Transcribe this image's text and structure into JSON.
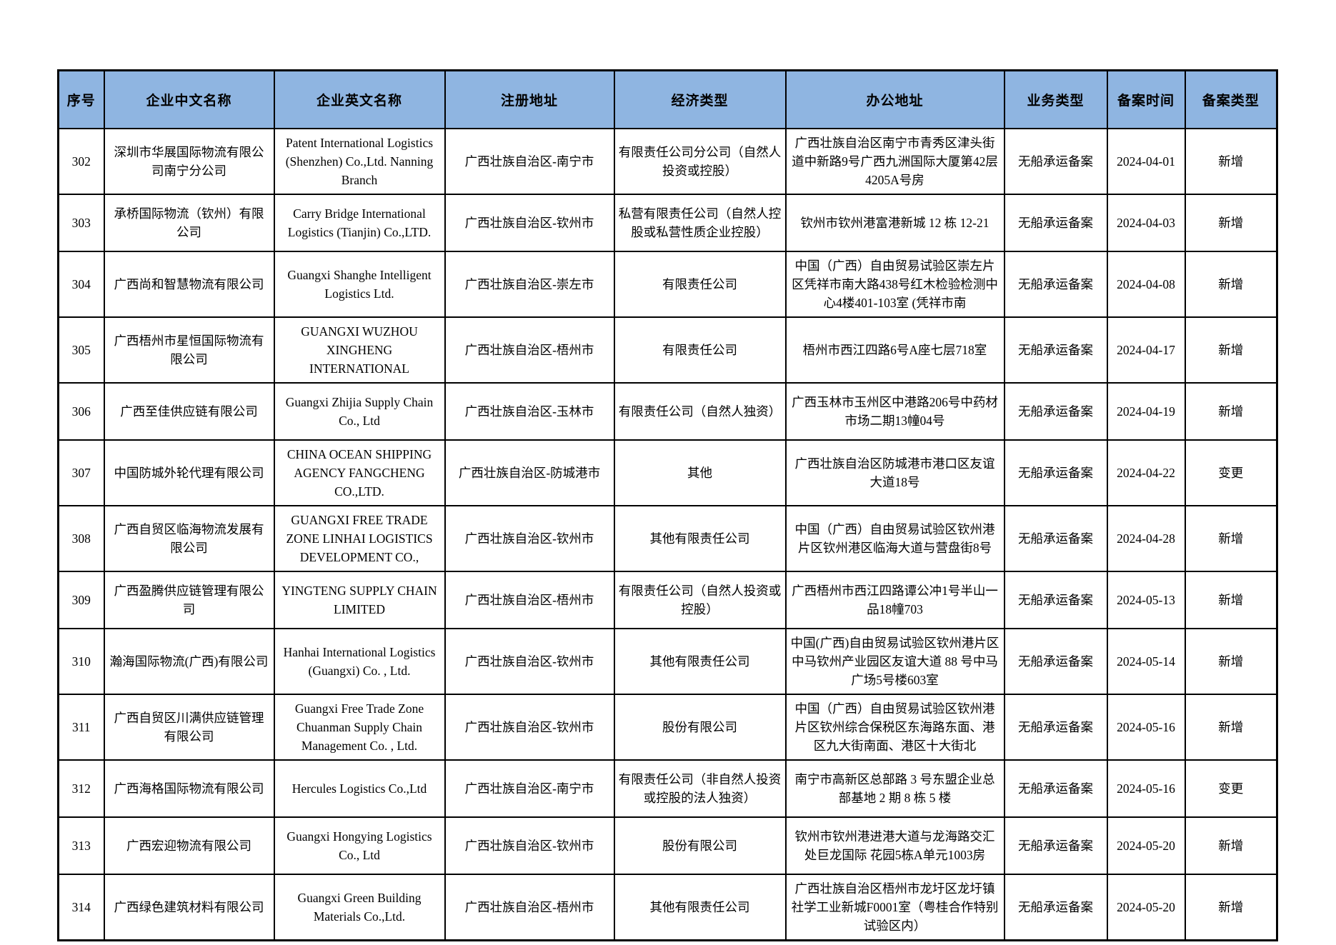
{
  "colors": {
    "header_bg": "#8FB5E1",
    "border": "#000000",
    "page_bg": "#FFFFFF"
  },
  "table": {
    "headers": [
      "序号",
      "企业中文名称",
      "企业英文名称",
      "注册地址",
      "经济类型",
      "办公地址",
      "业务类型",
      "备案时间",
      "备案类型"
    ],
    "rows": [
      [
        "302",
        "深圳市华展国际物流有限公司南宁分公司",
        "Patent International Logistics (Shenzhen) Co.,Ltd. Nanning Branch",
        "广西壮族自治区-南宁市",
        "有限责任公司分公司（自然人投资或控股）",
        "广西壮族自治区南宁市青秀区津头街道中新路9号广西九洲国际大厦第42层4205A号房",
        "无船承运备案",
        "2024-04-01",
        "新增"
      ],
      [
        "303",
        "承桥国际物流（钦州）有限公司",
        "Carry Bridge International Logistics (Tianjin) Co.,LTD.",
        "广西壮族自治区-钦州市",
        "私营有限责任公司（自然人控股或私营性质企业控股）",
        "钦州市钦州港富港新城 12 栋 12-21",
        "无船承运备案",
        "2024-04-03",
        "新增"
      ],
      [
        "304",
        "广西尚和智慧物流有限公司",
        "Guangxi Shanghe Intelligent Logistics Ltd.",
        "广西壮族自治区-崇左市",
        "有限责任公司",
        "中国（广西）自由贸易试验区崇左片区凭祥市南大路438号红木检验检测中心4楼401-103室 (凭祥市南",
        "无船承运备案",
        "2024-04-08",
        "新增"
      ],
      [
        "305",
        "广西梧州市星恒国际物流有限公司",
        "GUANGXI WUZHOU XINGHENG INTERNATIONAL",
        "广西壮族自治区-梧州市",
        "有限责任公司",
        "梧州市西江四路6号A座七层718室",
        "无船承运备案",
        "2024-04-17",
        "新增"
      ],
      [
        "306",
        "广西至佳供应链有限公司",
        "Guangxi Zhijia Supply Chain Co., Ltd",
        "广西壮族自治区-玉林市",
        "有限责任公司（自然人独资）",
        "广西玉林市玉州区中港路206号中药材市场二期13幢04号",
        "无船承运备案",
        "2024-04-19",
        "新增"
      ],
      [
        "307",
        "中国防城外轮代理有限公司",
        "CHINA OCEAN SHIPPING AGENCY FANGCHENG CO.,LTD.",
        "广西壮族自治区-防城港市",
        "其他",
        "广西壮族自治区防城港市港口区友谊大道18号",
        "无船承运备案",
        "2024-04-22",
        "变更"
      ],
      [
        "308",
        "广西自贸区临海物流发展有限公司",
        "GUANGXI FREE TRADE ZONE LINHAI LOGISTICS DEVELOPMENT CO.,",
        "广西壮族自治区-钦州市",
        "其他有限责任公司",
        "中国（广西）自由贸易试验区钦州港片区钦州港区临海大道与营盘街8号",
        "无船承运备案",
        "2024-04-28",
        "新增"
      ],
      [
        "309",
        "广西盈腾供应链管理有限公司",
        "YINGTENG SUPPLY CHAIN LIMITED",
        "广西壮族自治区-梧州市",
        "有限责任公司（自然人投资或控股）",
        "广西梧州市西江四路谭公冲1号半山一品18幢703",
        "无船承运备案",
        "2024-05-13",
        "新增"
      ],
      [
        "310",
        "瀚海国际物流(广西)有限公司",
        "Hanhai International Logistics (Guangxi) Co. , Ltd.",
        "广西壮族自治区-钦州市",
        "其他有限责任公司",
        "中国(广西)自由贸易试验区钦州港片区中马钦州产业园区友谊大道 88 号中马广场5号楼603室",
        "无船承运备案",
        "2024-05-14",
        "新增"
      ],
      [
        "311",
        "广西自贸区川满供应链管理有限公司",
        "Guangxi Free Trade Zone Chuanman Supply Chain Management Co. , Ltd.",
        "广西壮族自治区-钦州市",
        "股份有限公司",
        "中国（广西）自由贸易试验区钦州港片区钦州综合保税区东海路东面、港区九大街南面、港区十大街北",
        "无船承运备案",
        "2024-05-16",
        "新增"
      ],
      [
        "312",
        "广西海格国际物流有限公司",
        "Hercules Logistics Co.,Ltd",
        "广西壮族自治区-南宁市",
        "有限责任公司（非自然人投资或控股的法人独资）",
        "南宁市高新区总部路 3 号东盟企业总部基地 2 期 8 栋 5 楼",
        "无船承运备案",
        "2024-05-16",
        "变更"
      ],
      [
        "313",
        "广西宏迎物流有限公司",
        "Guangxi Hongying Logistics Co., Ltd",
        "广西壮族自治区-钦州市",
        "股份有限公司",
        "钦州市钦州港进港大道与龙海路交汇处巨龙国际 花园5栋A单元1003房",
        "无船承运备案",
        "2024-05-20",
        "新增"
      ],
      [
        "314",
        "广西绿色建筑材料有限公司",
        "Guangxi Green Building Materials Co.,Ltd.",
        "广西壮族自治区-梧州市",
        "其他有限责任公司",
        "广西壮族自治区梧州市龙圩区龙圩镇社学工业新城F0001室（粤桂合作特别试验区内）",
        "无船承运备案",
        "2024-05-20",
        "新增"
      ]
    ]
  }
}
